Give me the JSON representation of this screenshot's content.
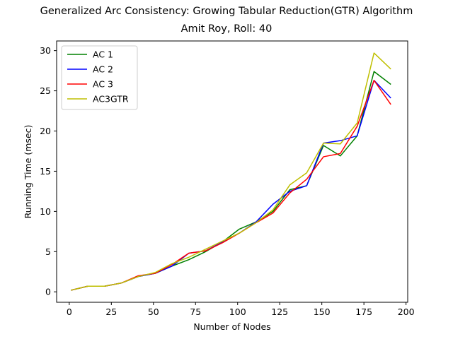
{
  "chart_data": {
    "type": "line",
    "title": "Generalized Arc Consistency: Growing Tabular Reduction(GTR) Algorithm",
    "subtitle": "Amit Roy, Roll: 40",
    "xlabel": "Number of Nodes",
    "ylabel": "Running Time (msec)",
    "xlim": [
      -7.5,
      201
    ],
    "ylim": [
      -1.3,
      31.2
    ],
    "xticks": [
      0,
      25,
      50,
      75,
      100,
      125,
      150,
      175,
      200
    ],
    "yticks": [
      0,
      5,
      10,
      15,
      20,
      25,
      30
    ],
    "grid": false,
    "legend_position": "top-left",
    "x": [
      1,
      11,
      21,
      31,
      41,
      51,
      61,
      71,
      81,
      91,
      101,
      111,
      121,
      131,
      141,
      151,
      161,
      171,
      181,
      191
    ],
    "series": [
      {
        "name": "AC 1",
        "color": "#008000",
        "values": [
          0.2,
          0.7,
          0.7,
          1.1,
          1.9,
          2.3,
          3.2,
          4.0,
          5.0,
          6.2,
          7.8,
          8.7,
          10.0,
          12.7,
          13.2,
          18.2,
          16.9,
          19.4,
          27.4,
          25.8
        ]
      },
      {
        "name": "AC 2",
        "color": "#0000ff",
        "values": [
          0.2,
          0.7,
          0.7,
          1.1,
          1.9,
          2.3,
          3.2,
          4.8,
          5.1,
          6.2,
          7.3,
          8.7,
          10.9,
          12.5,
          13.2,
          18.5,
          18.8,
          19.4,
          26.3,
          24.1
        ]
      },
      {
        "name": "AC 3",
        "color": "#ff0000",
        "values": [
          0.2,
          0.7,
          0.7,
          1.1,
          2.0,
          2.3,
          3.4,
          4.8,
          5.1,
          6.1,
          7.3,
          8.6,
          9.8,
          12.3,
          14.0,
          16.8,
          17.2,
          20.6,
          26.3,
          23.3
        ]
      },
      {
        "name": "AC3GTR",
        "color": "#bfbf00",
        "values": [
          0.2,
          0.7,
          0.7,
          1.1,
          1.9,
          2.4,
          3.5,
          4.3,
          5.3,
          6.3,
          7.3,
          8.6,
          10.2,
          13.3,
          14.8,
          18.5,
          18.4,
          21.0,
          29.7,
          27.7
        ]
      }
    ]
  }
}
